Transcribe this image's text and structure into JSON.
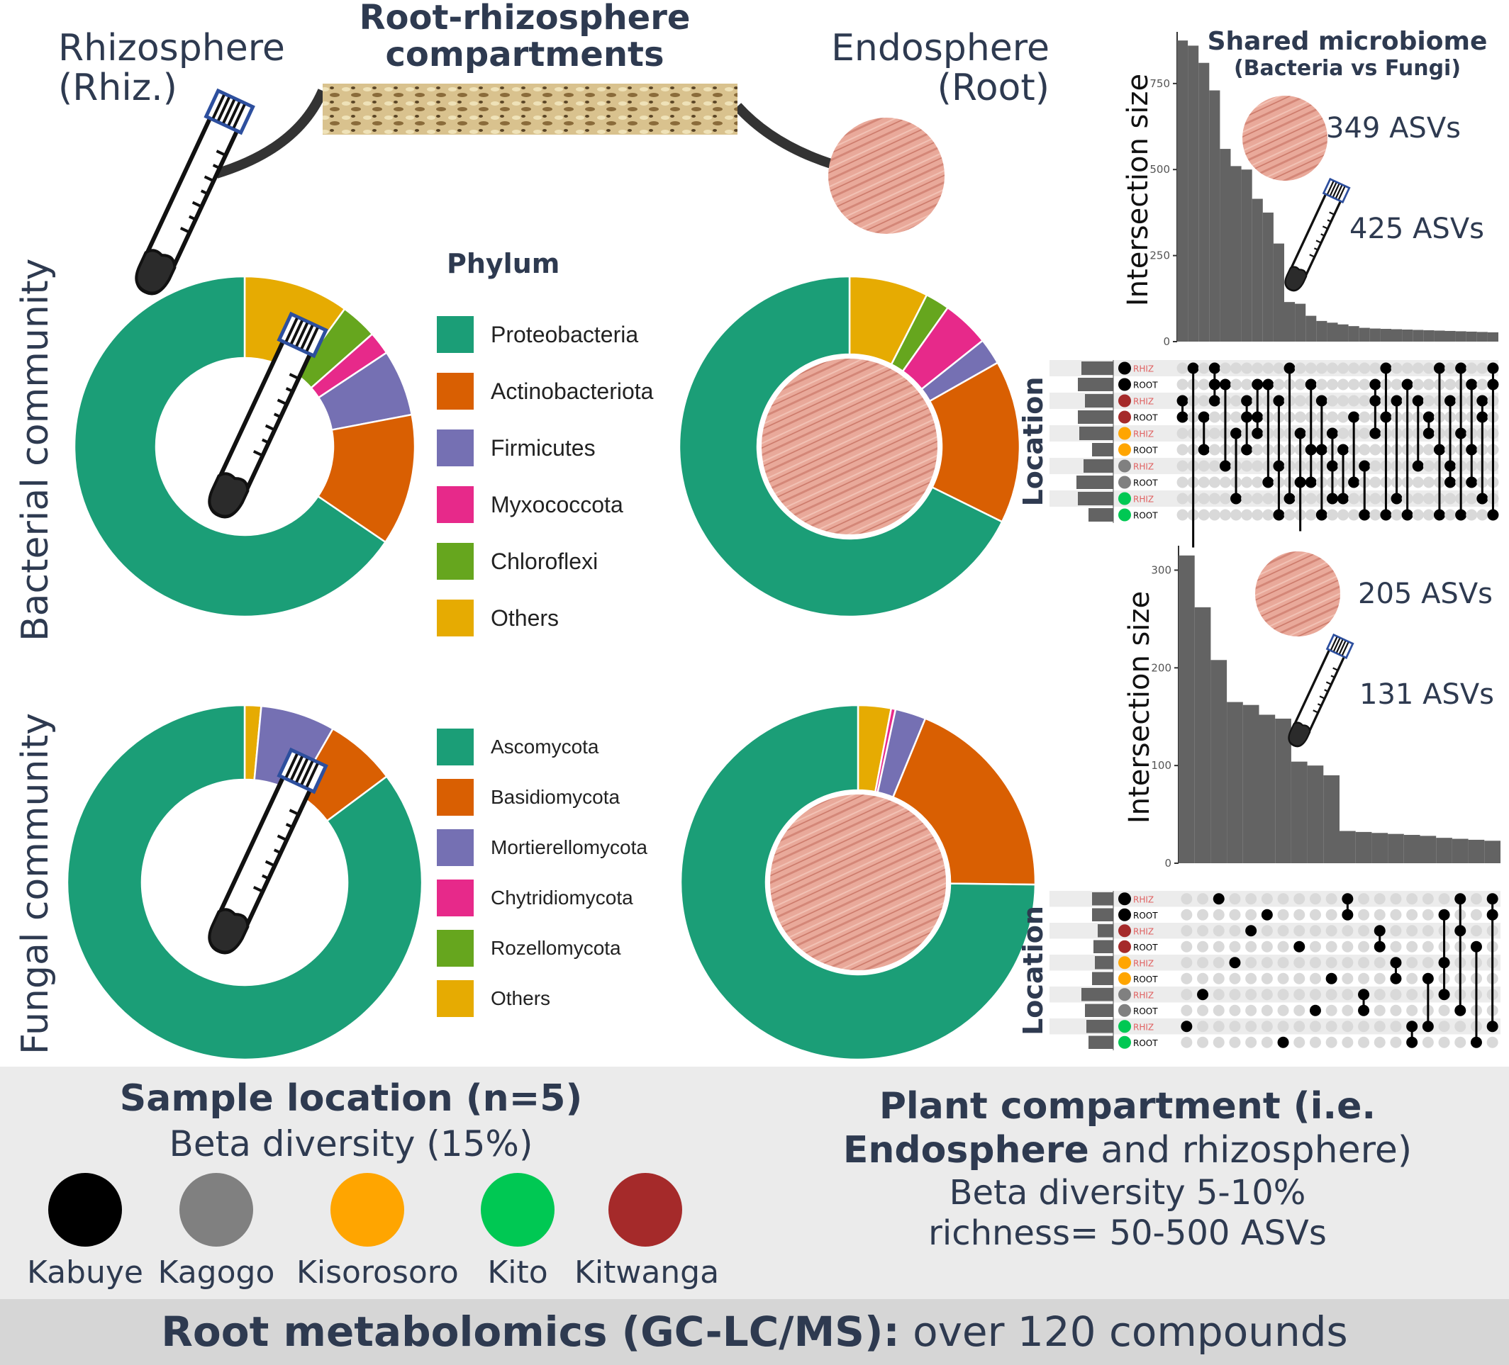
{
  "header": {
    "rhizosphere_line1": "Rhizosphere",
    "rhizosphere_line2": "(Rhiz.)",
    "compartments_line1": "Root-rhizosphere",
    "compartments_line2": "compartments",
    "endosphere_line1": "Endosphere",
    "endosphere_line2": "(Root)"
  },
  "row_labels": {
    "bacterial": "Bacterial community",
    "fungal": "Fungal community"
  },
  "legend_title": "Phylum",
  "colors": {
    "green": "#1b9e77",
    "orange": "#d95f02",
    "purple": "#7570b3",
    "pink": "#e7298a",
    "lime": "#66a61e",
    "gold": "#e6ab02",
    "bar": "#636363"
  },
  "bacterial_legend": [
    "Proteobacteria",
    "Actinobacteriota",
    "Firmicutes",
    "Myxococcota",
    "Chloroflexi",
    "Others"
  ],
  "fungal_legend": [
    "Ascomycota",
    "Basidiomycota",
    "Mortierellomycota",
    "Chytridiomycota",
    "Rozellomycota",
    "Others"
  ],
  "chart_data": [
    {
      "type": "pie",
      "id": "bacteria-rhizosphere",
      "categories": [
        "Others",
        "Chloroflexi",
        "Myxococcota",
        "Firmicutes",
        "Actinobacteriota",
        "Proteobacteria"
      ],
      "values": [
        10,
        3.5,
        2.2,
        6.3,
        12.5,
        65.5
      ]
    },
    {
      "type": "pie",
      "id": "bacteria-endosphere",
      "categories": [
        "Others",
        "Chloroflexi",
        "Myxococcota",
        "Firmicutes",
        "Actinobacteriota",
        "Proteobacteria"
      ],
      "values": [
        7.5,
        2.3,
        4.5,
        2.5,
        15.5,
        67.7
      ]
    },
    {
      "type": "pie",
      "id": "fungi-rhizosphere",
      "categories": [
        "Others",
        "Mortierellomycota",
        "Basidiomycota",
        "Ascomycota"
      ],
      "values": [
        1.5,
        6.8,
        6.5,
        85.2
      ]
    },
    {
      "type": "pie",
      "id": "fungi-endosphere",
      "categories": [
        "Others",
        "Chytridiomycota",
        "Mortierellomycota",
        "Basidiomycota",
        "Ascomycota"
      ],
      "values": [
        3,
        0.4,
        2.8,
        19,
        74.8
      ]
    },
    {
      "type": "bar",
      "id": "upset-bacteria",
      "ylabel": "Intersection size",
      "yticks": [
        0,
        250,
        500,
        750
      ],
      "ylim": [
        0,
        900
      ],
      "values": [
        875,
        860,
        810,
        730,
        560,
        510,
        500,
        415,
        375,
        285,
        115,
        110,
        75,
        60,
        55,
        50,
        45,
        40,
        38,
        37,
        36,
        35,
        34,
        33,
        32,
        31,
        30,
        29,
        28,
        27
      ]
    },
    {
      "type": "bar",
      "id": "upset-fungi",
      "ylabel": "Intersection size",
      "yticks": [
        0,
        100,
        200,
        300
      ],
      "ylim": [
        0,
        325
      ],
      "values": [
        315,
        262,
        208,
        165,
        162,
        152,
        148,
        104,
        100,
        90,
        33,
        32,
        31,
        30,
        29,
        28,
        26,
        25,
        24,
        23
      ]
    }
  ],
  "upset": {
    "title_line1": "Shared microbiome",
    "title_line2": "(Bacteria vs Fungi)",
    "location_label": "Location",
    "set_labels": [
      "RHIZ",
      "ROOT",
      "RHIZ",
      "ROOT",
      "RHIZ",
      "ROOT",
      "RHIZ",
      "ROOT",
      "RHIZ",
      "ROOT"
    ],
    "set_colors": [
      "#000000",
      "#000000",
      "#a52a2a",
      "#a52a2a",
      "#ffa500",
      "#ffa500",
      "#808080",
      "#808080",
      "#00c853",
      "#00c853"
    ],
    "bacteria_root_asvs": "349 ASVs",
    "bacteria_rhiz_asvs": "425 ASVs",
    "fungi_root_asvs": "205 ASVs",
    "fungi_rhiz_asvs": "131 ASVs"
  },
  "bottom": {
    "sample_location_title": "Sample location (n=5)",
    "sample_location_sub": "Beta diversity (15%)",
    "locations": [
      {
        "name": "Kabuye",
        "color": "#000000"
      },
      {
        "name": "Kagogo",
        "color": "#808080"
      },
      {
        "name": "Kisorosoro",
        "color": "#ffa500"
      },
      {
        "name": "Kito",
        "color": "#00c853"
      },
      {
        "name": "Kitwanga",
        "color": "#a52a2a"
      }
    ],
    "plant_line1": "Plant compartment (i.e.",
    "plant_line2_bold": "Endosphere",
    "plant_line2_rest": " and rhizosphere)",
    "plant_line3": "Beta diversity 5-10%",
    "plant_line4": "richness= 50-500 ASVs",
    "metabolomics_bold": "Root metabolomics (GC-LC/MS):",
    "metabolomics_rest": " over 120 compounds"
  }
}
